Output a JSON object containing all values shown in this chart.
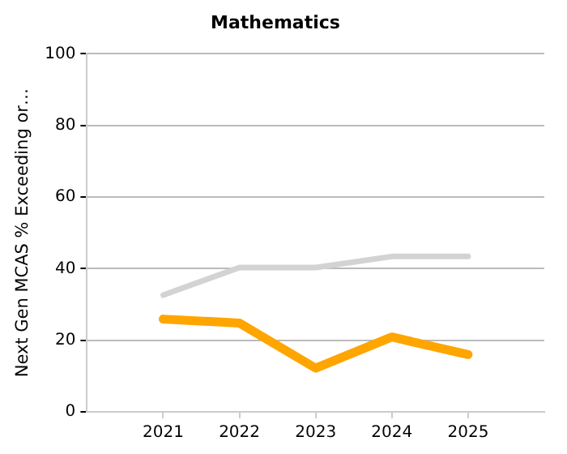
{
  "chart_data": {
    "type": "line",
    "title": "Mathematics",
    "ylabel": "Next Gen MCAS % Exceeding or…",
    "x": [
      2021,
      2022,
      2023,
      2024,
      2025
    ],
    "xlim": [
      2020,
      2026
    ],
    "xticks": [
      2021,
      2022,
      2023,
      2024,
      2025
    ],
    "ylim": [
      0,
      100
    ],
    "yticks": [
      0,
      20,
      40,
      60,
      80,
      100
    ],
    "grid": "y",
    "legend": false,
    "marker": "none",
    "line_style": "solid",
    "series": [
      {
        "color": "#d3d3d3",
        "values": [
          32.6,
          40.3,
          40.3,
          43.4,
          43.4
        ]
      },
      {
        "color": "#ffa500",
        "values": [
          25.9,
          24.8,
          12.2,
          20.9,
          16.0
        ]
      }
    ]
  }
}
